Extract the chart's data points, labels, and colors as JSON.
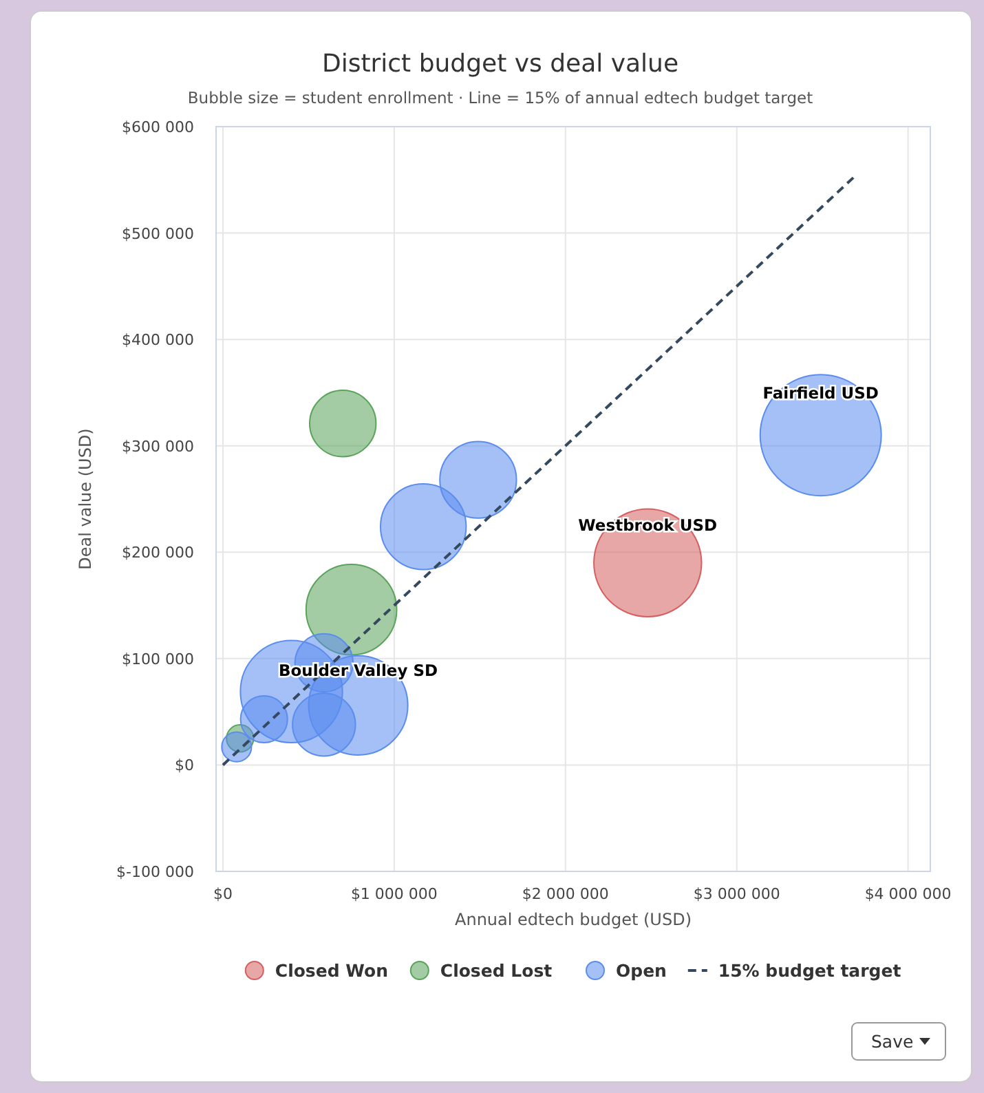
{
  "chart_data": {
    "type": "bubble",
    "title": "District budget vs deal value",
    "subtitle": "Bubble size = student enrollment · Line = 15% of annual edtech budget target",
    "xlabel": "Annual edtech budget (USD)",
    "ylabel": "Deal value (USD)",
    "xlim": [
      -40000,
      4130000
    ],
    "ylim": [
      -100000,
      600000
    ],
    "xticks": [
      {
        "value": 0,
        "label": "$0"
      },
      {
        "value": 1000000,
        "label": "$1 000 000"
      },
      {
        "value": 2000000,
        "label": "$2 000 000"
      },
      {
        "value": 3000000,
        "label": "$3 000 000"
      },
      {
        "value": 4000000,
        "label": "$4 000 000"
      }
    ],
    "yticks": [
      {
        "value": -100000,
        "label": "$-100 000"
      },
      {
        "value": 0,
        "label": "$0"
      },
      {
        "value": 100000,
        "label": "$100 000"
      },
      {
        "value": 200000,
        "label": "$200 000"
      },
      {
        "value": 300000,
        "label": "$300 000"
      },
      {
        "value": 400000,
        "label": "$400 000"
      },
      {
        "value": 500000,
        "label": "$500 000"
      },
      {
        "value": 600000,
        "label": "$600 000"
      }
    ],
    "grid": true,
    "legend": "bottom",
    "series": [
      {
        "name": "Closed Won",
        "color": "#d65f5f",
        "x": [
          2480000
        ],
        "values": [
          190000
        ],
        "sizes": [
          0.79
        ]
      },
      {
        "name": "Closed Lost",
        "color": "#5aa35a",
        "x": [
          700000,
          750000,
          100000
        ],
        "values": [
          321000,
          146000,
          25000
        ],
        "sizes": [
          0.3,
          0.56,
          0.05
        ]
      },
      {
        "name": "Open",
        "color": "#5b8def",
        "x": [
          3490000,
          1490000,
          1170000,
          790000,
          400000,
          590000,
          590000,
          240000,
          80000
        ],
        "values": [
          310000,
          268000,
          224000,
          56000,
          69000,
          96000,
          38000,
          43000,
          17000
        ],
        "sizes": [
          1,
          0.4,
          0.5,
          0.67,
          0.71,
          0.23,
          0.27,
          0.15,
          0.06
        ]
      },
      {
        "name": "15% budget target",
        "type": "line",
        "color": "#34495e",
        "line_style": "dashed",
        "marker": "none",
        "x": [
          0,
          3700000
        ],
        "values": [
          0,
          555000
        ]
      }
    ],
    "annotations": [
      {
        "text": "Fairfield USD",
        "x": 3490000,
        "y": 310000
      },
      {
        "text": "Westbrook USD",
        "x": 2480000,
        "y": 190000
      },
      {
        "text": "Boulder Valley SD",
        "x": 790000,
        "y": 56000
      },
      "Save"
    ]
  }
}
